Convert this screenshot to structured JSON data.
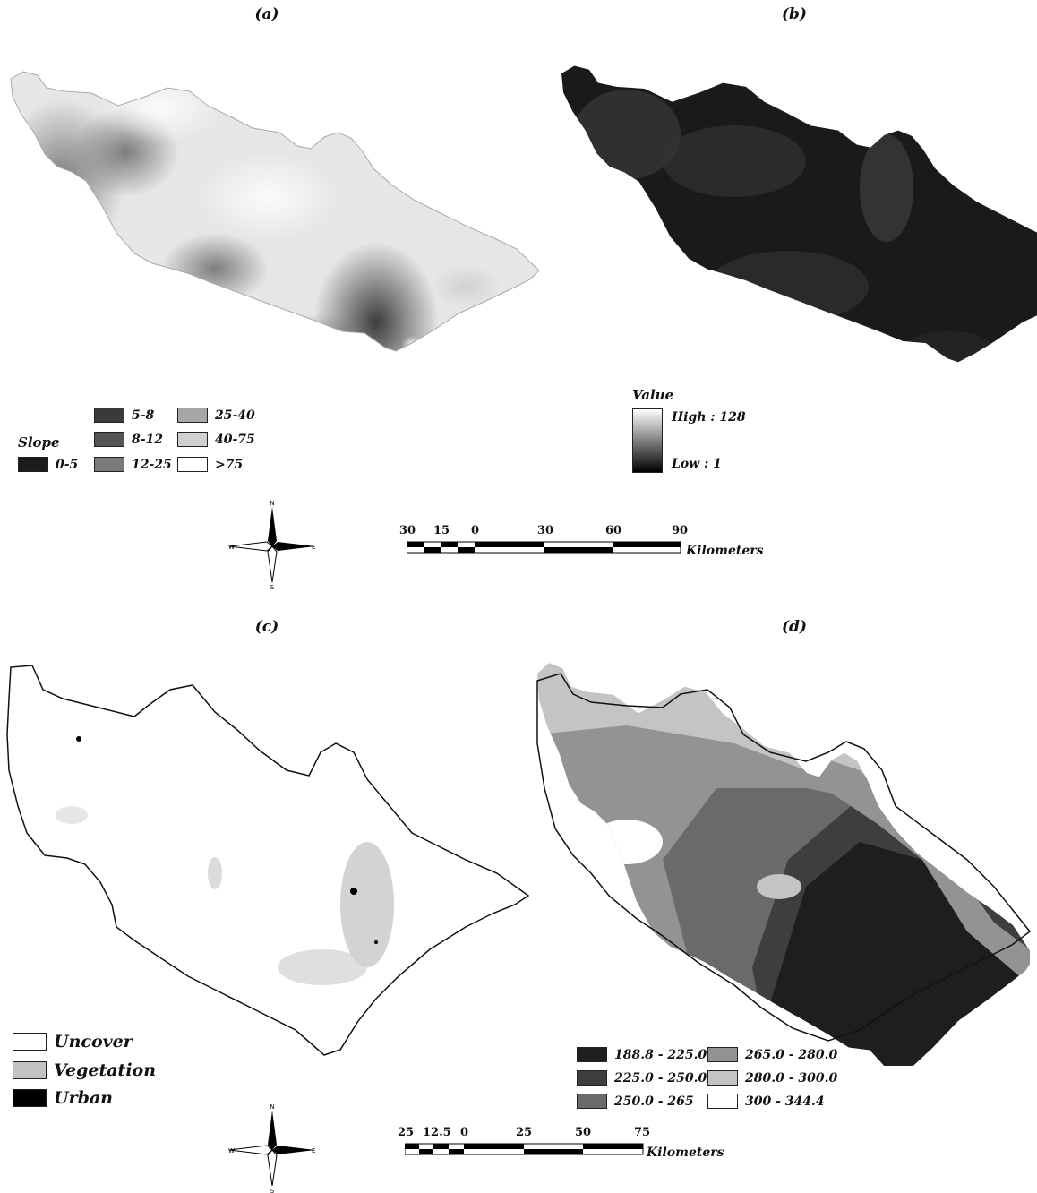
{
  "panels": {
    "a": {
      "label": "(a)"
    },
    "b": {
      "label": "(b)"
    },
    "c": {
      "label": "(c)"
    },
    "d": {
      "label": "(d)"
    }
  },
  "slope_legend": {
    "title": "Slope",
    "items": [
      {
        "label": "0-5",
        "color": "#1c1c1c"
      },
      {
        "label": "5-8",
        "color": "#3a3a3a"
      },
      {
        "label": "8-12",
        "color": "#555555"
      },
      {
        "label": "12-25",
        "color": "#7a7a7a"
      },
      {
        "label": "25-40",
        "color": "#a6a6a6"
      },
      {
        "label": "40-75",
        "color": "#d0d0d0"
      },
      {
        "label": ">75",
        "color": "#ffffff"
      }
    ]
  },
  "value_legend": {
    "title": "Value",
    "high": "High : 128",
    "low": "Low : 1"
  },
  "landcover_legend": {
    "items": [
      {
        "label": "Uncover",
        "color": "#ffffff"
      },
      {
        "label": "Vegetation",
        "color": "#c2c2c2"
      },
      {
        "label": "Urban",
        "color": "#000000"
      }
    ]
  },
  "elevation_legend": {
    "items": [
      {
        "label": "188.8 - 225.0",
        "color": "#1e1e1e"
      },
      {
        "label": "225.0 - 250.0",
        "color": "#3e3e3e"
      },
      {
        "label": "250.0 - 265",
        "color": "#6a6a6a"
      },
      {
        "label": "265.0 - 280.0",
        "color": "#939393"
      },
      {
        "label": "280.0 - 300.0",
        "color": "#c4c4c4"
      },
      {
        "label": "300 - 344.4",
        "color": "#ffffff"
      }
    ]
  },
  "compass": {
    "n": "N",
    "s": "S",
    "e": "E",
    "w": "W"
  },
  "scalebar_top": {
    "ticks": [
      "30",
      "15",
      "0",
      "30",
      "60",
      "90"
    ],
    "unit": "Kilometers"
  },
  "scalebar_bottom": {
    "ticks": [
      "25",
      "12.5",
      "0",
      "25",
      "50",
      "75"
    ],
    "unit": "Kilometers"
  },
  "icons": {
    "compass": "north-arrow-icon"
  }
}
